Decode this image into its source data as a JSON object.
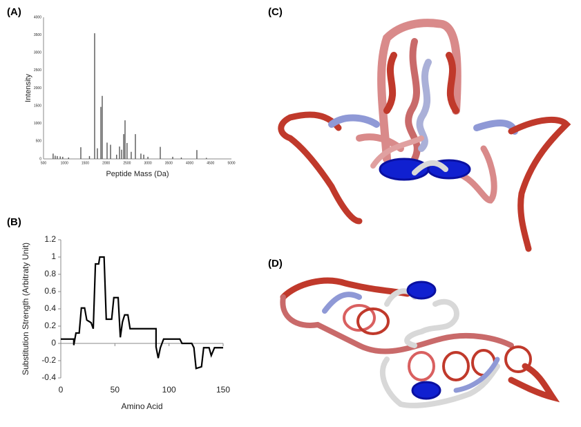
{
  "panel_labels": [
    "(A)",
    "(B)",
    "(C)",
    "(D)"
  ],
  "chart_data": [
    {
      "type": "stem",
      "x_label": "Peptide Mass (Da)",
      "y_label": "Intensity",
      "color": "#555555",
      "x": [
        730,
        780,
        830,
        900,
        960,
        1100,
        1393,
        1600,
        1724,
        1790,
        1873,
        1906,
        2022,
        2105,
        2250,
        2320,
        2370,
        2420,
        2452,
        2500,
        2600,
        2700,
        2832,
        2900,
        3000,
        3296,
        3594,
        3800,
        4172,
        4400
      ],
      "values": [
        150,
        90,
        80,
        70,
        60,
        40,
        330,
        80,
        3550,
        300,
        1470,
        1780,
        460,
        400,
        120,
        350,
        260,
        700,
        1090,
        450,
        200,
        700,
        150,
        120,
        60,
        340,
        60,
        40,
        250,
        30
      ],
      "xlim": [
        500,
        5000
      ],
      "xticks": [
        500,
        1000,
        1500,
        2000,
        2500,
        3000,
        3500,
        4000,
        4500,
        5000
      ],
      "ylim": [
        0,
        4000
      ],
      "yticks": [
        0,
        500,
        1000,
        1500,
        2000,
        2500,
        3000,
        3500,
        4000
      ]
    },
    {
      "type": "line",
      "x_label": "Amino Acid",
      "y_label": "Substitution Strength (Arbitraty Unit)",
      "color": "#000000",
      "x": [
        0,
        12,
        12,
        14,
        17,
        19,
        22,
        24,
        28,
        30,
        32,
        35,
        36,
        40,
        42,
        47,
        49,
        53,
        55,
        57,
        59,
        62,
        64,
        75,
        88,
        88,
        90,
        92,
        95,
        110,
        112,
        121,
        123,
        125,
        130,
        132,
        137,
        139,
        142,
        150
      ],
      "values": [
        0.05,
        0.05,
        -0.02,
        0.12,
        0.12,
        0.41,
        0.41,
        0.27,
        0.24,
        0.17,
        0.92,
        0.92,
        1.0,
        1.0,
        0.28,
        0.28,
        0.53,
        0.53,
        0.07,
        0.25,
        0.33,
        0.33,
        0.17,
        0.17,
        0.17,
        -0.04,
        -0.17,
        -0.05,
        0.05,
        0.05,
        0.0,
        0.0,
        -0.05,
        -0.29,
        -0.27,
        -0.05,
        -0.05,
        -0.14,
        -0.05,
        -0.05
      ],
      "xlim": [
        0,
        150
      ],
      "xticks": [
        0,
        50,
        100,
        150
      ],
      "ylim": [
        -0.4,
        1.2
      ],
      "yticks": [
        -0.4,
        -0.2,
        0,
        0.2,
        0.4,
        0.6,
        0.8,
        1,
        1.2
      ]
    }
  ]
}
